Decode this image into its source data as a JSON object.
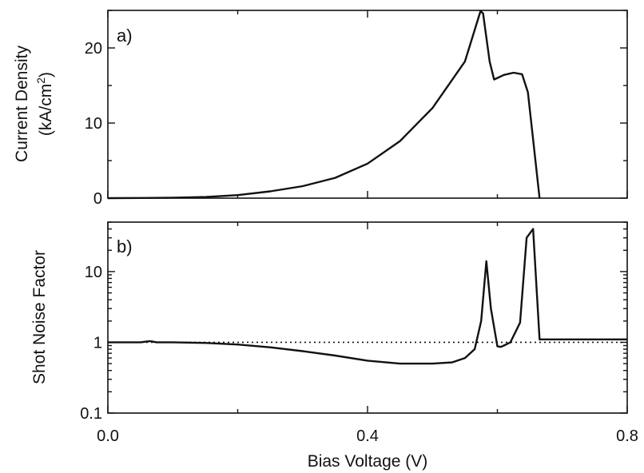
{
  "figure": {
    "xlabel": "Bias Voltage (V)",
    "x_ticks": [
      "0.0",
      "0.4",
      "0.8"
    ]
  },
  "chart_data": [
    {
      "type": "line",
      "panel_label": "a)",
      "ylabel_line1": "Current Density",
      "ylabel_line2": "(kA/cm",
      "ylabel_sup": "2",
      "ylabel_line2_end": ")",
      "xlabel": "Bias Voltage (V)",
      "xlim": [
        0,
        0.8
      ],
      "ylim": [
        0,
        25
      ],
      "x_ticks": [
        0,
        0.4,
        0.8
      ],
      "y_ticks": [
        0,
        10,
        20
      ],
      "y_tick_labels": [
        "0",
        "10",
        "20"
      ],
      "grid": false,
      "series": [
        {
          "x": [
            0.0,
            0.05,
            0.1,
            0.15,
            0.2,
            0.25,
            0.3,
            0.35,
            0.4,
            0.45,
            0.5,
            0.55,
            0.574,
            0.578,
            0.588,
            0.595,
            0.61,
            0.625,
            0.638,
            0.647,
            0.665
          ],
          "y": [
            0.0,
            0.02,
            0.06,
            0.15,
            0.4,
            0.9,
            1.6,
            2.7,
            4.6,
            7.6,
            12.0,
            18.2,
            24.9,
            24.6,
            18.2,
            15.8,
            16.4,
            16.7,
            16.5,
            14.1,
            0.0
          ]
        }
      ]
    },
    {
      "type": "line",
      "panel_label": "b)",
      "ylabel": "Shot Noise Factor",
      "xlabel": "Bias Voltage (V)",
      "xlim": [
        0,
        0.8
      ],
      "ylim": [
        0.1,
        50
      ],
      "y_scale": "log",
      "x_ticks": [
        0,
        0.4,
        0.8
      ],
      "x_tick_labels": [
        "0.0",
        "0.4",
        "0.8"
      ],
      "y_ticks": [
        0.1,
        1,
        10
      ],
      "y_tick_labels": [
        "0.1",
        "1",
        "10"
      ],
      "grid": false,
      "reference_line": {
        "y": 1,
        "style": "dotted"
      },
      "series": [
        {
          "x": [
            0.0,
            0.05,
            0.065,
            0.075,
            0.1,
            0.15,
            0.2,
            0.25,
            0.3,
            0.35,
            0.4,
            0.45,
            0.5,
            0.53,
            0.55,
            0.565,
            0.575,
            0.583,
            0.59,
            0.6,
            0.605,
            0.61,
            0.62,
            0.635,
            0.645,
            0.655,
            0.665,
            0.8
          ],
          "y": [
            1.0,
            1.0,
            1.04,
            1.0,
            1.0,
            0.98,
            0.93,
            0.85,
            0.75,
            0.65,
            0.55,
            0.5,
            0.5,
            0.52,
            0.6,
            0.8,
            2.0,
            14.0,
            3.0,
            0.88,
            0.86,
            0.9,
            1.0,
            1.9,
            30.0,
            40.0,
            1.1,
            1.1
          ]
        }
      ]
    }
  ]
}
